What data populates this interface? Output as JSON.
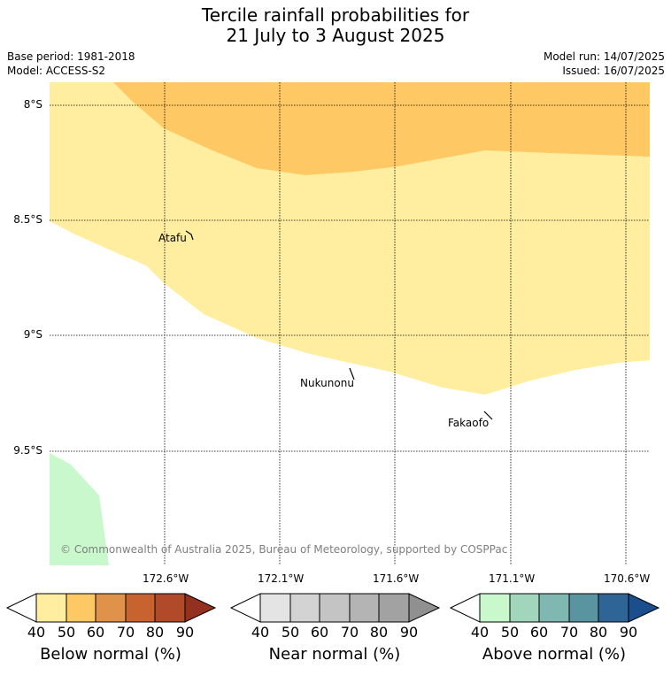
{
  "title_line1": "Tercile rainfall probabilities for",
  "title_line2": "21 July to 3 August 2025",
  "base_period": "Base period: 1981-2018",
  "model": "Model: ACCESS-S2",
  "model_run": "Model run: 14/07/2025",
  "issued": "Issued: 16/07/2025",
  "lat_labels": [
    "8°S",
    "8.5°S",
    "9°S",
    "9.5°S"
  ],
  "lon_labels": [
    "172.6°W",
    "172.1°W",
    "171.6°W",
    "171.1°W",
    "170.6°W"
  ],
  "places": [
    "Atafu",
    "Nukunonu",
    "Fakaofo"
  ],
  "copyright": "© Commonwealth of Australia 2025, Bureau of Meteorology, supported by COSPPac",
  "colorbars": [
    {
      "title": "Below normal (%)",
      "colors": [
        "#ffeda0",
        "#fec965",
        "#e0924a",
        "#c8632f",
        "#b04a28",
        "#943020"
      ],
      "ticks": [
        "40",
        "50",
        "60",
        "70",
        "80",
        "90"
      ]
    },
    {
      "title": "Near normal (%)",
      "colors": [
        "#e4e4e4",
        "#d3d3d3",
        "#c4c4c4",
        "#b4b4b4",
        "#a2a2a2",
        "#909090"
      ],
      "ticks": [
        "40",
        "50",
        "60",
        "70",
        "80",
        "90"
      ]
    },
    {
      "title": "Above normal (%)",
      "colors": [
        "#c8f8cc",
        "#a2d6bc",
        "#7eb8b0",
        "#5a94a0",
        "#2e6496",
        "#1a4e8c"
      ],
      "ticks": [
        "40",
        "50",
        "60",
        "70",
        "80",
        "90"
      ]
    }
  ],
  "fill_colors": {
    "below_40_50": "#ffeda0",
    "below_50_60": "#fec965",
    "above_40_50": "#c8f8cc"
  }
}
